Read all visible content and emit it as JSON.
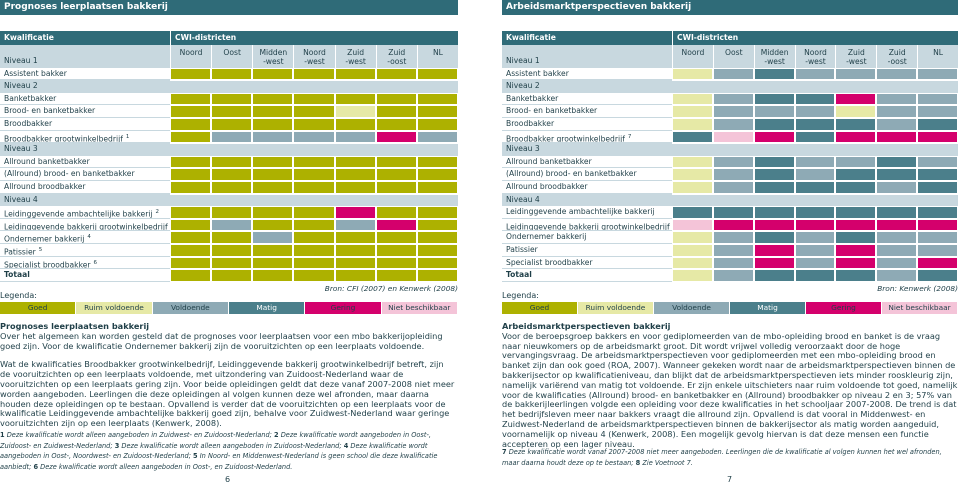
{
  "legend": [
    {
      "label": "Goed",
      "color": "#adb100"
    },
    {
      "label": "Ruim voldoende",
      "color": "#e6e9a6"
    },
    {
      "label": "Voldoende",
      "color": "#8eaab5"
    },
    {
      "label": "Matig",
      "color": "#4b7f8b"
    },
    {
      "label": "Gering",
      "color": "#d4006c"
    },
    {
      "label": "Niet beschikbaar",
      "color": "#f4c4d8"
    }
  ],
  "left": {
    "title": "Prognoses leerplaatsen bakkerij",
    "col_group": [
      "Kwalificatie",
      "CWI-districten"
    ],
    "columns": [
      "Noord",
      "Oost",
      "Midden\n-west",
      "Noord\n-west",
      "Zuid\n-west",
      "Zuid\n-oost",
      "NL"
    ],
    "rows": [
      {
        "label": "Niveau 1"
      },
      {
        "label": "Assistent bakker",
        "cells": [
          0,
          0,
          0,
          0,
          0,
          0,
          0
        ]
      },
      {
        "label": "Niveau 2"
      },
      {
        "label": "Banketbakker",
        "cells": [
          0,
          0,
          0,
          0,
          0,
          0,
          0
        ]
      },
      {
        "label": "Brood- en banketbakker",
        "cells": [
          0,
          0,
          0,
          0,
          1,
          0,
          0
        ]
      },
      {
        "label": "Broodbakker",
        "cells": [
          0,
          0,
          0,
          0,
          0,
          0,
          0
        ]
      },
      {
        "label": "Broodbakker grootwinkelbedrijf",
        "note": "1",
        "cells": [
          0,
          2,
          2,
          2,
          2,
          4,
          2
        ]
      },
      {
        "label": "Niveau 3"
      },
      {
        "label": "Allround banketbakker",
        "cells": [
          0,
          0,
          0,
          0,
          0,
          0,
          0
        ]
      },
      {
        "label": "(Allround) brood- en banketbakker",
        "cells": [
          0,
          0,
          0,
          0,
          0,
          0,
          0
        ]
      },
      {
        "label": "Allround broodbakker",
        "cells": [
          0,
          0,
          0,
          0,
          0,
          0,
          0
        ]
      },
      {
        "label": "Niveau 4"
      },
      {
        "label": "Leidinggevende ambachtelijke bakkerij",
        "note": "2",
        "cells": [
          0,
          0,
          0,
          0,
          4,
          0,
          0
        ]
      },
      {
        "label": "Leidinggevende bakkerij grootwinkelbedrijf",
        "note": "3",
        "cells": [
          0,
          2,
          0,
          0,
          2,
          4,
          0
        ]
      },
      {
        "label": "Ondernemer bakkerij",
        "note": "4",
        "cells": [
          0,
          0,
          2,
          0,
          0,
          0,
          0
        ]
      },
      {
        "label": "Patissier",
        "note": "5",
        "cells": [
          0,
          0,
          0,
          0,
          0,
          0,
          0
        ]
      },
      {
        "label": "Specialist broodbakker",
        "note": "6",
        "cells": [
          0,
          0,
          0,
          0,
          0,
          0,
          0
        ]
      },
      {
        "label": "Totaal",
        "cells": [
          0,
          0,
          0,
          0,
          0,
          0,
          0
        ]
      }
    ],
    "legend_title": "Legenda:",
    "source": "Bron: CFI (2007) en Kenwerk (2008)"
  },
  "right": {
    "title": "Arbeidsmarktperspectieven bakkerij",
    "col_group": [
      "Kwalificatie",
      "CWI-districten"
    ],
    "columns": [
      "Noord",
      "Oost",
      "Midden\n-west",
      "Noord\n-west",
      "Zuid\n-west",
      "Zuid\n-oost",
      "NL"
    ],
    "rows": [
      {
        "label": "Niveau 1"
      },
      {
        "label": "Assistent bakker",
        "cells": [
          1,
          2,
          3,
          2,
          2,
          2,
          2
        ]
      },
      {
        "label": "Niveau 2"
      },
      {
        "label": "Banketbakker",
        "cells": [
          1,
          2,
          3,
          3,
          4,
          2,
          2
        ]
      },
      {
        "label": "Brood- en banketbakker",
        "cells": [
          1,
          2,
          2,
          2,
          1,
          2,
          2
        ]
      },
      {
        "label": "Broodbakker",
        "cells": [
          1,
          2,
          3,
          3,
          3,
          2,
          3
        ]
      },
      {
        "label": "Broodbakker grootwinkelbedrijf",
        "note": "7",
        "cells": [
          3,
          5,
          4,
          3,
          4,
          4,
          4
        ]
      },
      {
        "label": "Niveau 3"
      },
      {
        "label": "Allround banketbakker",
        "cells": [
          1,
          2,
          3,
          2,
          2,
          3,
          2
        ]
      },
      {
        "label": "(Allround) brood- en banketbakker",
        "cells": [
          1,
          2,
          3,
          2,
          3,
          3,
          3
        ]
      },
      {
        "label": "Allround broodbakker",
        "cells": [
          1,
          2,
          3,
          3,
          3,
          2,
          3
        ]
      },
      {
        "label": "Niveau 4"
      },
      {
        "label": "Leidinggevende ambachtelijke bakkerij",
        "cells": [
          3,
          3,
          3,
          3,
          3,
          3,
          3
        ]
      },
      {
        "label": "Leidinggevende bakkerij grootwinkelbedrijf",
        "note": "8",
        "cells": [
          5,
          4,
          4,
          4,
          4,
          4,
          4
        ]
      },
      {
        "label": "Ondernemer bakkerij",
        "cells": [
          1,
          2,
          3,
          2,
          3,
          2,
          2
        ]
      },
      {
        "label": "Patissier",
        "cells": [
          1,
          2,
          4,
          2,
          4,
          2,
          2
        ]
      },
      {
        "label": "Specialist broodbakker",
        "cells": [
          1,
          2,
          4,
          2,
          4,
          2,
          4
        ]
      },
      {
        "label": "Totaal",
        "cells": [
          1,
          2,
          3,
          3,
          3,
          2,
          3
        ]
      }
    ],
    "legend_title": "Legenda:",
    "source": "Bron: Kenwerk (2008)"
  },
  "text_left": {
    "heading": "Prognoses leerplaatsen bakkerij",
    "paragraphs": [
      "Over het algemeen kan worden gesteld dat de prognoses voor leerplaatsen voor een mbo bakkerijopleiding goed zijn. Voor de kwalificatie Ondernemer bakkerij zijn de vooruitzichten op een leerplaats voldoende.",
      "Wat de kwalificaties Broodbakker grootwinkelbedrijf, Leidinggevende bakkerij grootwinkelbedrijf betreft, zijn de vooruitzichten op een leerplaats voldoende, met uitzondering van Zuidoost-Nederland waar de vooruitzichten op een leerplaats gering zijn. Voor beide opleidingen geldt dat deze vanaf 2007-2008 niet meer worden aangeboden. Leerlingen die deze opleidingen al volgen kunnen deze wel afronden, maar daarna houden deze opleidingen op te bestaan. Opvallend is verder dat de vooruitzichten op een leerplaats voor de kwalificatie Leidinggevende ambachtelijke bakkerij goed zijn, behalve voor Zuidwest-Nederland waar geringe vooruitzichten zijn op een leerplaats (Kenwerk, 2008)."
    ],
    "footnotes": [
      {
        "num": "1",
        "text": "Deze kwalificatie wordt alleen aangeboden in Zuidwest- en Zuidoost-Nederland;"
      },
      {
        "num": "2",
        "text": "Deze kwalificatie wordt aangeboden in Oost-, Zuidoost- en Zuidwest-Nederland;"
      },
      {
        "num": "3",
        "text": "Deze kwalificatie wordt alleen aangeboden in Zuidoost-Nederland;"
      },
      {
        "num": "4",
        "text": "Deze kwalificatie wordt aangeboden in Oost-, Noordwest- en Zuidoost-Nederland;"
      },
      {
        "num": "5",
        "text": "In Noord- en Middenwest-Nederland is geen school die deze kwalificatie aanbiedt;"
      },
      {
        "num": "6",
        "text": "Deze kwalificatie wordt alleen aangeboden in Oost-, en Zuidoost-Nederland."
      }
    ]
  },
  "text_right": {
    "heading": "Arbeidsmarktperspectieven bakkerij",
    "paragraphs": [
      "Voor de beroepsgroep bakkers en voor gediplomeerden van de mbo-opleiding brood en banket is de vraag naar nieuwkomers op de arbeidsmarkt groot. Dit wordt vrijwel volledig veroorzaakt door de hoge vervangingsvraag. De arbeidsmarktperspectieven voor gediplomeerden met een mbo-opleiding brood en banket zijn dan ook goed (ROA, 2007). Wanneer gekeken wordt naar de arbeidsmarktperspectieven binnen de bakkerijsector op kwalificatieniveau, dan blijkt dat de arbeidsmarktperspectieven iets minder rooskleurig zijn, namelijk variërend van matig tot voldoende. Er zijn enkele uitschieters naar ruim voldoende tot goed, namelijk voor de kwalificaties (Allround) brood- en banketbakker en (Allround) broodbakker op niveau 2 en 3; 57% van de bakkerijleerlingen volgde een opleiding voor deze kwalificaties in het schooljaar 2007-2008. De trend is dat het bedrijfsleven meer naar bakkers vraagt die allround zijn. Opvallend is dat vooral in Middenwest- en Zuidwest-Nederland de arbeidsmarktperspectieven binnen de bakkerijsector als matig worden aangeduid, voornamelijk op niveau 4 (Kenwerk, 2008). Een mogelijk gevolg hiervan is dat deze mensen een functie accepteren op een lager niveau."
    ],
    "footnotes": [
      {
        "num": "7",
        "text": "Deze kwalificatie wordt vanaf 2007-2008 niet meer aangeboden. Leerlingen die de kwalificatie al volgen kunnen het wel afronden, maar daarna houdt deze op te bestaan;"
      },
      {
        "num": "8",
        "text": "Zie Voetnoot 7."
      }
    ]
  },
  "page_numbers": [
    "6",
    "7"
  ]
}
